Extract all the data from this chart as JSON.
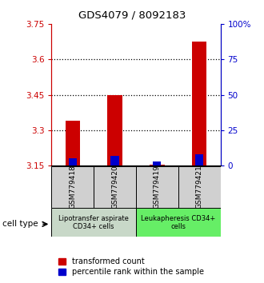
{
  "title": "GDS4079 / 8092183",
  "samples": [
    "GSM779418",
    "GSM779420",
    "GSM779419",
    "GSM779421"
  ],
  "transformed_counts": [
    3.34,
    3.45,
    3.155,
    3.675
  ],
  "percentile_rank_values": [
    5,
    7,
    3,
    8
  ],
  "y_min": 3.15,
  "y_max": 3.75,
  "y_ticks_left": [
    3.15,
    3.3,
    3.45,
    3.6,
    3.75
  ],
  "y_ticks_right": [
    0,
    25,
    50,
    75,
    100
  ],
  "dotted_lines": [
    3.3,
    3.45,
    3.6
  ],
  "red_color": "#cc0000",
  "blue_color": "#0000cc",
  "group1_label": "Lipotransfer aspirate\nCD34+ cells",
  "group2_label": "Leukapheresis CD34+\ncells",
  "group1_color": "#c8d8c8",
  "group2_color": "#66ee66",
  "cell_type_label": "cell type",
  "legend_red": "transformed count",
  "legend_blue": "percentile rank within the sample",
  "left_axis_color": "#cc0000",
  "right_axis_color": "#0000cc",
  "bar_width": 0.35
}
